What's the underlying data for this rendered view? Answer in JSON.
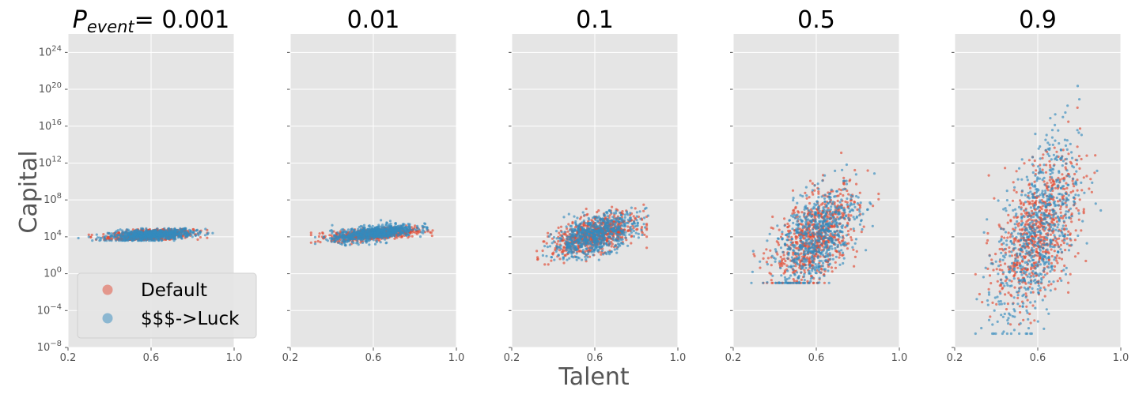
{
  "figure": {
    "xlabel": "Talent",
    "ylabel": "Capital",
    "colors": {
      "default": "#E24A33",
      "luck": "#348ABD",
      "panel_bg": "#E5E5E5",
      "grid": "#ffffff"
    }
  },
  "legend": {
    "placement": "lower-left of first panel",
    "items": [
      {
        "label": "Default",
        "color": "#E24A33"
      },
      {
        "label": "$$$->Luck",
        "color": "#348ABD"
      }
    ]
  },
  "chart_data": [
    {
      "type": "scatter",
      "title_italic_symbol": "P",
      "title_subscript": "event",
      "title_suffix": "= 0.001",
      "xlim": [
        0.2,
        1.0
      ],
      "ylim_log10": [
        -8,
        26
      ],
      "yscale": "log",
      "xticks": [
        "0.2",
        "0.6",
        "1.0"
      ],
      "yticks": [
        {
          "base": "10",
          "exp": "24"
        },
        {
          "base": "10",
          "exp": "20"
        },
        {
          "base": "10",
          "exp": "16"
        },
        {
          "base": "10",
          "exp": "12"
        },
        {
          "base": "10",
          "exp": "8"
        },
        {
          "base": "10",
          "exp": "4"
        },
        {
          "base": "10",
          "exp": "0"
        },
        {
          "base": "10",
          "exp": "−4"
        },
        {
          "base": "10",
          "exp": "−8"
        }
      ],
      "series": [
        {
          "name": "Default",
          "center": {
            "talent": 0.6,
            "log10_capital": 4.2
          },
          "talent_range": [
            0.3,
            0.87
          ],
          "log10_capital_range": [
            3.7,
            4.8
          ],
          "points": 700
        },
        {
          "name": "$$$->Luck",
          "center": {
            "talent": 0.6,
            "log10_capital": 4.2
          },
          "talent_range": [
            0.25,
            0.9
          ],
          "log10_capital_range": [
            3.6,
            4.9
          ],
          "points": 700
        }
      ]
    },
    {
      "type": "scatter",
      "title": "0.01",
      "xlim": [
        0.2,
        1.0
      ],
      "ylim_log10": [
        -8,
        26
      ],
      "yscale": "log",
      "xticks": [
        "0.2",
        "0.6",
        "1.0"
      ],
      "series": [
        {
          "name": "Default",
          "center": {
            "talent": 0.6,
            "log10_capital": 4.3
          },
          "talent_range": [
            0.3,
            0.98
          ],
          "log10_capital_range": [
            3.2,
            5.2
          ],
          "points": 700
        },
        {
          "name": "$$$->Luck",
          "center": {
            "talent": 0.6,
            "log10_capital": 4.4
          },
          "talent_range": [
            0.32,
            0.86
          ],
          "log10_capital_range": [
            3.0,
            5.8
          ],
          "points": 700
        }
      ]
    },
    {
      "type": "scatter",
      "title": "0.1",
      "xlim": [
        0.2,
        1.0
      ],
      "ylim_log10": [
        -8,
        26
      ],
      "yscale": "log",
      "xticks": [
        "0.2",
        "0.6",
        "1.0"
      ],
      "series": [
        {
          "name": "Default",
          "center": {
            "talent": 0.6,
            "log10_capital": 4.2
          },
          "talent_range": [
            0.22,
            0.85
          ],
          "log10_capital_range": [
            1.0,
            7.5
          ],
          "points": 700
        },
        {
          "name": "$$$->Luck",
          "center": {
            "talent": 0.6,
            "log10_capital": 4.2
          },
          "talent_range": [
            0.35,
            0.97
          ],
          "log10_capital_range": [
            1.5,
            8.5
          ],
          "points": 700
        }
      ]
    },
    {
      "type": "scatter",
      "title": "0.5",
      "xlim": [
        0.2,
        1.0
      ],
      "ylim_log10": [
        -8,
        26
      ],
      "yscale": "log",
      "xticks": [
        "0.2",
        "0.6",
        "1.0"
      ],
      "series": [
        {
          "name": "Default",
          "center": {
            "talent": 0.6,
            "log10_capital": 4.0
          },
          "talent_range": [
            0.22,
            0.9
          ],
          "log10_capital_range": [
            -1.0,
            15.0
          ],
          "points": 700
        },
        {
          "name": "$$$->Luck",
          "center": {
            "talent": 0.6,
            "log10_capital": 4.0
          },
          "talent_range": [
            0.25,
            0.88
          ],
          "log10_capital_range": [
            -1.0,
            15.5
          ],
          "points": 700
        }
      ]
    },
    {
      "type": "scatter",
      "title": "0.9",
      "xlim": [
        0.2,
        1.0
      ],
      "ylim_log10": [
        -8,
        26
      ],
      "yscale": "log",
      "xticks": [
        "0.2",
        "0.6",
        "1.0"
      ],
      "series": [
        {
          "name": "Default",
          "center": {
            "talent": 0.6,
            "log10_capital": 4.5
          },
          "talent_range": [
            0.3,
            0.97
          ],
          "log10_capital_range": [
            -5.5,
            18.0
          ],
          "points": 700
        },
        {
          "name": "$$$->Luck",
          "center": {
            "talent": 0.6,
            "log10_capital": 4.5
          },
          "talent_range": [
            0.3,
            0.92
          ],
          "log10_capital_range": [
            -6.5,
            24.5
          ],
          "points": 700
        }
      ]
    }
  ]
}
